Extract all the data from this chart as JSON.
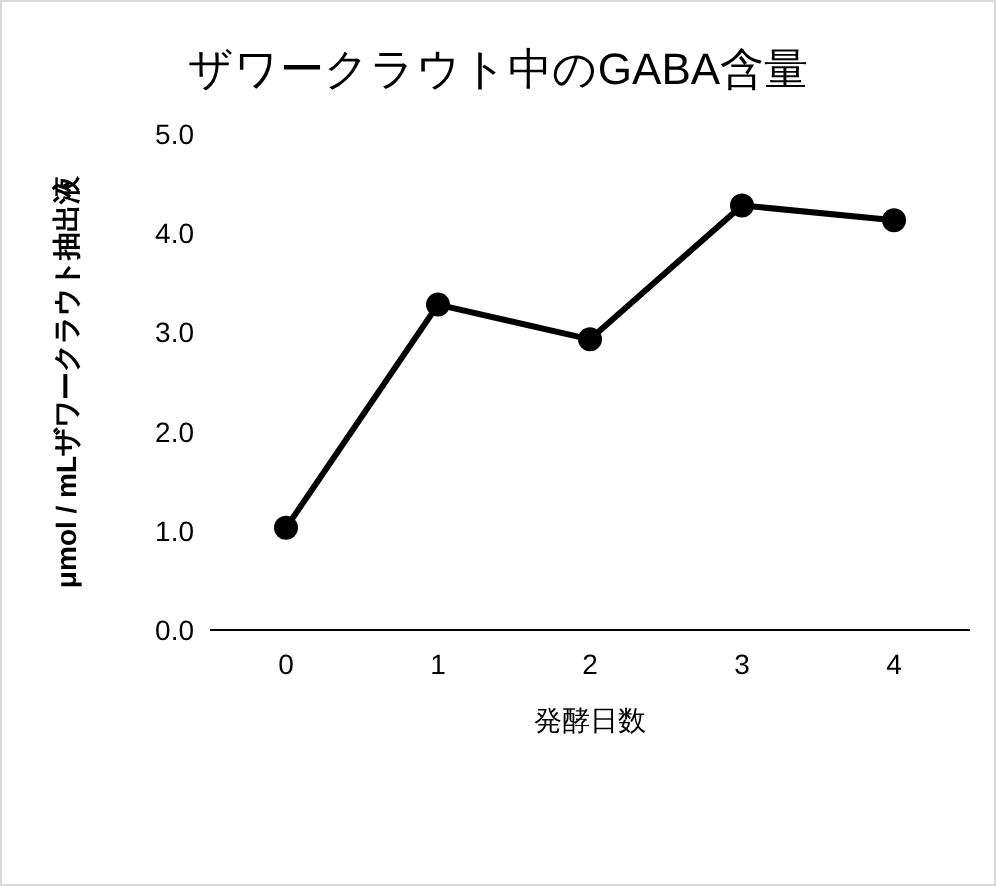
{
  "chart_data": {
    "type": "line",
    "title": "ザワークラウト中のGABA含量",
    "xlabel": "発酵日数",
    "ylabel": "μmol / mLザワークラウト抽出液",
    "categories": [
      "0",
      "1",
      "2",
      "3",
      "4"
    ],
    "series": [
      {
        "color": "#000000",
        "values": [
          1.03,
          3.28,
          2.93,
          4.28,
          4.13
        ]
      }
    ],
    "ylim": [
      0,
      5
    ],
    "yticks": [
      {
        "value": 0,
        "label": "0.0"
      },
      {
        "value": 1,
        "label": "1.0"
      },
      {
        "value": 2,
        "label": "2.0"
      },
      {
        "value": 3,
        "label": "3.0"
      },
      {
        "value": 4,
        "label": "4.0"
      },
      {
        "value": 5,
        "label": "5.0"
      }
    ],
    "grid": false,
    "marker": "circle",
    "line_style": "solid"
  }
}
